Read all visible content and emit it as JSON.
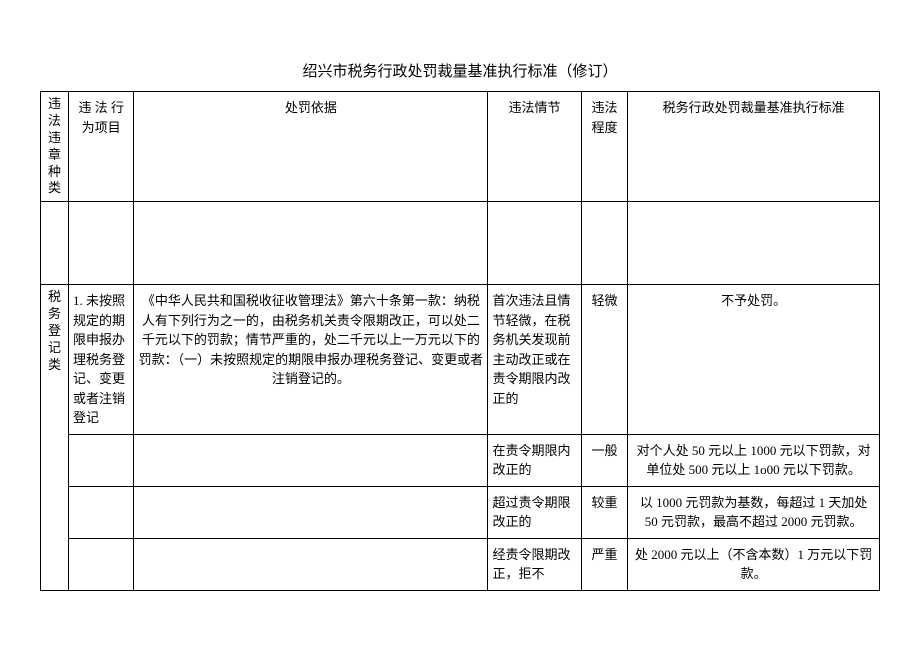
{
  "title": "绍兴市税务行政处罚裁量基准执行标准（修订）",
  "headers": {
    "category": "违法违章种类",
    "item": "违 法 行为项目",
    "basis": "处罚依据",
    "circumstance": "违法情节",
    "degree": "违法程度",
    "standard": "税务行政处罚裁量基准执行标准"
  },
  "category_label": "税务登记类",
  "item_label": "1. 未按照规定的期限申报办理税务登记、变更或者注销登记",
  "basis_text": "《中华人民共和国税收征收管理法》第六十条第一款：纳税人有下列行为之一的，由税务机关责令限期改正，可以处二千元以下的罚款；情节严重的，处二千元以上一万元以下的罚款：（一）未按照规定的期限申报办理税务登记、变更或者注销登记的。",
  "rows": [
    {
      "circumstance": "首次违法且情节轻微，在税务机关发现前主动改正或在责令期限内改正的",
      "degree": "轻微",
      "standard": "不予处罚。"
    },
    {
      "circumstance": "在责令期限内改正的",
      "degree": "一般",
      "standard": "对个人处 50 元以上 1000 元以下罚款，对单位处 500 元以上 1o00 元以下罚款。"
    },
    {
      "circumstance": "超过责令期限改正的",
      "degree": "较重",
      "standard": "以 1000 元罚款为基数，每超过 1 天加处 50 元罚款，最高不超过 2000 元罚款。"
    },
    {
      "circumstance": "经责令限期改正，拒不",
      "degree": "严重",
      "standard": "处 2000 元以上（不含本数）1 万元以下罚款。"
    }
  ]
}
